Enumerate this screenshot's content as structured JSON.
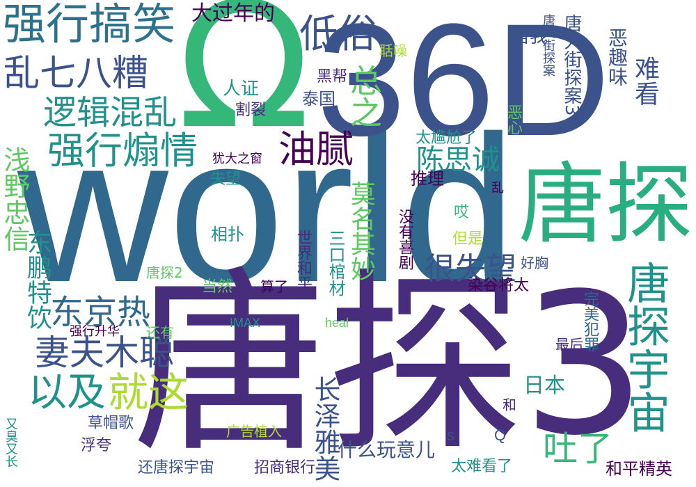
{
  "palette": {
    "deep_purple": "#440154",
    "indigo": "#472d7b",
    "blue": "#3b528b",
    "teal_blue": "#2c728e",
    "teal": "#21918c",
    "green_teal": "#28ae80",
    "green": "#5ec962",
    "yellow_green": "#addc30",
    "yellow": "#fde725"
  },
  "words": [
    {
      "text": "world",
      "color": "#31688e"
    },
    {
      "text": "唐探3",
      "color": "#472d7b"
    },
    {
      "text": "36D",
      "color": "#3b528b"
    },
    {
      "text": "Ω",
      "color": "#35b779"
    },
    {
      "text": "唐探",
      "color": "#28ae80"
    },
    {
      "text": "强行搞笑",
      "color": "#2c728e"
    },
    {
      "text": "大过年的",
      "color": "#440154"
    },
    {
      "text": "低俗",
      "color": "#3b528b"
    },
    {
      "text": "乱七八糟",
      "color": "#3b528b"
    },
    {
      "text": "逻辑混乱",
      "color": "#21918c"
    },
    {
      "text": "强行煽情",
      "color": "#21918c"
    },
    {
      "text": "油腻",
      "color": "#440154"
    },
    {
      "text": "总之",
      "color": "#5ec962"
    },
    {
      "text": "陈思诚",
      "color": "#21918c"
    },
    {
      "text": "很失望",
      "color": "#3b528b"
    },
    {
      "text": "东京热",
      "color": "#31688e"
    },
    {
      "text": "妻夫木聪",
      "color": "#3b528b"
    },
    {
      "text": "以及",
      "color": "#21918c"
    },
    {
      "text": "就这",
      "color": "#addc30"
    },
    {
      "text": "唐探宇宙",
      "color": "#21918c"
    },
    {
      "text": "吐了",
      "color": "#35b779"
    },
    {
      "text": "莫名其妙",
      "color": "#5ec962"
    },
    {
      "text": "长泽雅美",
      "color": "#3b528b"
    },
    {
      "text": "浅野忠信",
      "color": "#5ec962"
    },
    {
      "text": "东鹏特饮",
      "color": "#21918c"
    },
    {
      "text": "自我",
      "color": "#3b528b"
    },
    {
      "text": "难看",
      "color": "#3b528b"
    },
    {
      "text": "恶趣味",
      "color": "#3b528b"
    },
    {
      "text": "唐人街探案3",
      "color": "#3b528b"
    },
    {
      "text": "唐人街探案",
      "color": "#3b528b"
    },
    {
      "text": "聒噪",
      "color": "#addc30"
    },
    {
      "text": "黑帮",
      "color": "#472d7b"
    },
    {
      "text": "人证",
      "color": "#21918c"
    },
    {
      "text": "割裂",
      "color": "#472d7b"
    },
    {
      "text": "泰国",
      "color": "#3b528b"
    },
    {
      "text": "恶心",
      "color": "#5ec962"
    },
    {
      "text": "犹大之窗",
      "color": "#440154"
    },
    {
      "text": "太尴尬了",
      "color": "#21918c"
    },
    {
      "text": "失望",
      "color": "#21918c"
    },
    {
      "text": "推理",
      "color": "#440154"
    },
    {
      "text": "乱",
      "color": "#440154"
    },
    {
      "text": "相扑",
      "color": "#21918c"
    },
    {
      "text": "世界和平",
      "color": "#472d7b"
    },
    {
      "text": "三口棺材",
      "color": "#21918c"
    },
    {
      "text": "没有喜剧",
      "color": "#440154"
    },
    {
      "text": "哎",
      "color": "#35b779"
    },
    {
      "text": "但是",
      "color": "#addc30"
    },
    {
      "text": "唐探2",
      "color": "#5ec962"
    },
    {
      "text": "好胸",
      "color": "#3b528b"
    },
    {
      "text": "当然",
      "color": "#5ec962"
    },
    {
      "text": "算了",
      "color": "#440154"
    },
    {
      "text": "染谷将太",
      "color": "#440154"
    },
    {
      "text": "完美犯罪",
      "color": "#31688e"
    },
    {
      "text": "强行升华",
      "color": "#440154"
    },
    {
      "text": "还有",
      "color": "#5ec962"
    },
    {
      "text": "IMAX",
      "color": "#21918c"
    },
    {
      "text": "heal",
      "color": "#5ec962"
    },
    {
      "text": "最后",
      "color": "#472d7b"
    },
    {
      "text": "日本",
      "color": "#21918c"
    },
    {
      "text": "和",
      "color": "#472d7b"
    },
    {
      "text": "草帽歌",
      "color": "#3b528b"
    },
    {
      "text": "广告植入",
      "color": "#addc30"
    },
    {
      "text": "浮夸",
      "color": "#472d7b"
    },
    {
      "text": "什么玩意儿",
      "color": "#3b528b"
    },
    {
      "text": "s",
      "color": "#3b528b"
    },
    {
      "text": "Q",
      "color": "#3b528b"
    },
    {
      "text": "还唐探宇宙",
      "color": "#3b528b"
    },
    {
      "text": "招商银行",
      "color": "#472d7b"
    },
    {
      "text": "太难看了",
      "color": "#21918c"
    },
    {
      "text": "和平精英",
      "color": "#440154"
    },
    {
      "text": "又臭又长",
      "color": "#21918c"
    }
  ]
}
